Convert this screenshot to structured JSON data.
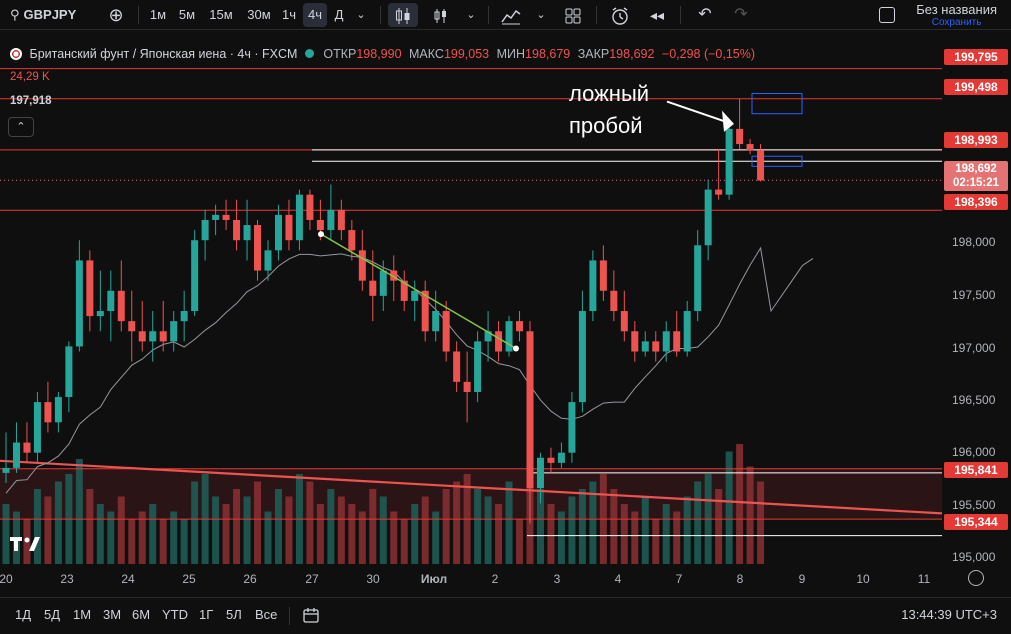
{
  "toolbar": {
    "symbol": "GBPJPY",
    "intervals": [
      "1м",
      "5м",
      "15м",
      "30м",
      "1ч",
      "4ч",
      "Д"
    ],
    "active_interval": "4ч",
    "layout_name": "Без названия",
    "layout_save": "Сохранить"
  },
  "legend": {
    "title": "Британский фунт / Японская иена · 4ч · FXCM",
    "open_label": "ОТКР",
    "open": "198,990",
    "high_label": "МАКС",
    "high": "199,053",
    "low_label": "МИН",
    "low": "198,679",
    "close_label": "ЗАКР",
    "close": "198,692",
    "change": "−0,298 (−0,15%)",
    "volume": "24,29 K",
    "ma_value": "197,918"
  },
  "annotation": {
    "line1": "ложный",
    "line2": "пробой"
  },
  "price_scale": {
    "labels": [
      "198,000",
      "197,500",
      "197,000",
      "196,500",
      "196,000",
      "195,500",
      "195,000"
    ],
    "levels": [
      "199,795",
      "199,498",
      "198,993",
      "198,396",
      "195,841",
      "195,344"
    ],
    "current_price": "198,692",
    "countdown": "02:15:21"
  },
  "time_scale": {
    "labels": [
      "20",
      "23",
      "24",
      "25",
      "26",
      "27",
      "30",
      "Июл",
      "2",
      "3",
      "4",
      "7",
      "8",
      "9",
      "10",
      "11"
    ]
  },
  "bottom": {
    "ranges": [
      "1Д",
      "5Д",
      "1М",
      "3М",
      "6М",
      "YTD",
      "1Г",
      "5Л",
      "Все"
    ],
    "clock": "13:44:39 UTC+3"
  },
  "colors": {
    "up": "#26a69a",
    "down": "#ef5350",
    "level": "#e53935",
    "bg": "#0f0f0f"
  },
  "chart_data": {
    "type": "candlestick",
    "ylim": [
      194.9,
      199.95
    ],
    "candles": [
      {
        "o": 195.8,
        "h": 196.2,
        "l": 195.7,
        "c": 195.85
      },
      {
        "o": 195.85,
        "h": 196.3,
        "l": 195.8,
        "c": 196.1
      },
      {
        "o": 196.1,
        "h": 196.3,
        "l": 195.9,
        "c": 196.0
      },
      {
        "o": 196.0,
        "h": 196.6,
        "l": 195.9,
        "c": 196.5
      },
      {
        "o": 196.5,
        "h": 196.7,
        "l": 196.2,
        "c": 196.3
      },
      {
        "o": 196.3,
        "h": 196.6,
        "l": 196.2,
        "c": 196.55
      },
      {
        "o": 196.55,
        "h": 197.1,
        "l": 196.4,
        "c": 197.05
      },
      {
        "o": 197.05,
        "h": 198.1,
        "l": 197.0,
        "c": 197.9
      },
      {
        "o": 197.9,
        "h": 198.0,
        "l": 197.2,
        "c": 197.35
      },
      {
        "o": 197.35,
        "h": 197.8,
        "l": 197.2,
        "c": 197.4
      },
      {
        "o": 197.4,
        "h": 197.8,
        "l": 197.1,
        "c": 197.6
      },
      {
        "o": 197.6,
        "h": 197.9,
        "l": 197.2,
        "c": 197.3
      },
      {
        "o": 197.3,
        "h": 197.6,
        "l": 196.9,
        "c": 197.2
      },
      {
        "o": 197.2,
        "h": 197.5,
        "l": 197.0,
        "c": 197.1
      },
      {
        "o": 197.1,
        "h": 197.4,
        "l": 196.9,
        "c": 197.2
      },
      {
        "o": 197.2,
        "h": 197.5,
        "l": 197.0,
        "c": 197.1
      },
      {
        "o": 197.1,
        "h": 197.4,
        "l": 197.0,
        "c": 197.3
      },
      {
        "o": 197.3,
        "h": 197.6,
        "l": 197.1,
        "c": 197.4
      },
      {
        "o": 197.4,
        "h": 198.2,
        "l": 197.35,
        "c": 198.1
      },
      {
        "o": 198.1,
        "h": 198.4,
        "l": 197.9,
        "c": 198.3
      },
      {
        "o": 198.3,
        "h": 198.45,
        "l": 198.15,
        "c": 198.35
      },
      {
        "o": 198.35,
        "h": 198.5,
        "l": 198.2,
        "c": 198.3
      },
      {
        "o": 198.3,
        "h": 198.5,
        "l": 198.0,
        "c": 198.1
      },
      {
        "o": 198.1,
        "h": 198.5,
        "l": 197.9,
        "c": 198.25
      },
      {
        "o": 198.25,
        "h": 198.3,
        "l": 197.7,
        "c": 197.8
      },
      {
        "o": 197.8,
        "h": 198.1,
        "l": 197.7,
        "c": 198.0
      },
      {
        "o": 198.0,
        "h": 198.45,
        "l": 197.9,
        "c": 198.35
      },
      {
        "o": 198.35,
        "h": 198.5,
        "l": 198.0,
        "c": 198.1
      },
      {
        "o": 198.1,
        "h": 198.6,
        "l": 198.0,
        "c": 198.55
      },
      {
        "o": 198.55,
        "h": 198.6,
        "l": 198.2,
        "c": 198.3
      },
      {
        "o": 198.3,
        "h": 198.5,
        "l": 198.1,
        "c": 198.2
      },
      {
        "o": 198.2,
        "h": 198.65,
        "l": 198.1,
        "c": 198.4
      },
      {
        "o": 198.4,
        "h": 198.5,
        "l": 198.1,
        "c": 198.2
      },
      {
        "o": 198.2,
        "h": 198.3,
        "l": 197.9,
        "c": 198.0
      },
      {
        "o": 198.0,
        "h": 198.2,
        "l": 197.6,
        "c": 197.7
      },
      {
        "o": 197.7,
        "h": 198.0,
        "l": 197.3,
        "c": 197.55
      },
      {
        "o": 197.55,
        "h": 197.9,
        "l": 197.4,
        "c": 197.8
      },
      {
        "o": 197.8,
        "h": 197.95,
        "l": 197.5,
        "c": 197.7
      },
      {
        "o": 197.7,
        "h": 197.8,
        "l": 197.4,
        "c": 197.5
      },
      {
        "o": 197.5,
        "h": 197.7,
        "l": 197.3,
        "c": 197.6
      },
      {
        "o": 197.6,
        "h": 197.7,
        "l": 197.1,
        "c": 197.2
      },
      {
        "o": 197.2,
        "h": 197.6,
        "l": 197.1,
        "c": 197.4
      },
      {
        "o": 197.4,
        "h": 197.5,
        "l": 196.9,
        "c": 197.0
      },
      {
        "o": 197.0,
        "h": 197.1,
        "l": 196.6,
        "c": 196.7
      },
      {
        "o": 196.7,
        "h": 197.0,
        "l": 196.3,
        "c": 196.6
      },
      {
        "o": 196.6,
        "h": 197.2,
        "l": 196.5,
        "c": 197.1
      },
      {
        "o": 197.1,
        "h": 197.4,
        "l": 196.9,
        "c": 197.2
      },
      {
        "o": 197.2,
        "h": 197.3,
        "l": 196.9,
        "c": 197.0
      },
      {
        "o": 197.0,
        "h": 197.35,
        "l": 196.95,
        "c": 197.3
      },
      {
        "o": 197.3,
        "h": 197.4,
        "l": 197.1,
        "c": 197.2
      },
      {
        "o": 197.2,
        "h": 197.3,
        "l": 195.3,
        "c": 195.65
      },
      {
        "o": 195.65,
        "h": 196.0,
        "l": 195.5,
        "c": 195.95
      },
      {
        "o": 195.95,
        "h": 196.05,
        "l": 195.8,
        "c": 195.9
      },
      {
        "o": 195.9,
        "h": 196.1,
        "l": 195.85,
        "c": 196.0
      },
      {
        "o": 196.0,
        "h": 196.6,
        "l": 195.9,
        "c": 196.5
      },
      {
        "o": 196.5,
        "h": 197.6,
        "l": 196.4,
        "c": 197.4
      },
      {
        "o": 197.4,
        "h": 198.0,
        "l": 197.3,
        "c": 197.9
      },
      {
        "o": 197.9,
        "h": 198.05,
        "l": 197.5,
        "c": 197.6
      },
      {
        "o": 197.6,
        "h": 197.8,
        "l": 197.3,
        "c": 197.4
      },
      {
        "o": 197.4,
        "h": 197.6,
        "l": 197.1,
        "c": 197.2
      },
      {
        "o": 197.2,
        "h": 197.3,
        "l": 196.9,
        "c": 197.0
      },
      {
        "o": 197.0,
        "h": 197.2,
        "l": 196.95,
        "c": 197.1
      },
      {
        "o": 197.1,
        "h": 197.2,
        "l": 196.9,
        "c": 197.0
      },
      {
        "o": 197.0,
        "h": 197.3,
        "l": 196.9,
        "c": 197.2
      },
      {
        "o": 197.2,
        "h": 197.4,
        "l": 196.95,
        "c": 197.0
      },
      {
        "o": 197.0,
        "h": 197.5,
        "l": 196.95,
        "c": 197.4
      },
      {
        "o": 197.4,
        "h": 198.2,
        "l": 197.3,
        "c": 198.05
      },
      {
        "o": 198.05,
        "h": 198.7,
        "l": 197.9,
        "c": 198.6
      },
      {
        "o": 198.6,
        "h": 199.0,
        "l": 198.5,
        "c": 198.55
      },
      {
        "o": 198.55,
        "h": 199.3,
        "l": 198.5,
        "c": 199.2
      },
      {
        "o": 199.2,
        "h": 199.5,
        "l": 199.0,
        "c": 199.05
      },
      {
        "o": 199.05,
        "h": 199.1,
        "l": 198.95,
        "c": 198.99
      },
      {
        "o": 198.99,
        "h": 199.05,
        "l": 198.68,
        "c": 198.69
      }
    ],
    "volumes": [
      0.4,
      0.35,
      0.3,
      0.5,
      0.45,
      0.55,
      0.6,
      0.7,
      0.5,
      0.4,
      0.35,
      0.45,
      0.3,
      0.35,
      0.4,
      0.3,
      0.35,
      0.3,
      0.55,
      0.6,
      0.45,
      0.4,
      0.5,
      0.45,
      0.55,
      0.35,
      0.5,
      0.45,
      0.6,
      0.55,
      0.4,
      0.5,
      0.45,
      0.4,
      0.35,
      0.5,
      0.45,
      0.35,
      0.3,
      0.4,
      0.45,
      0.35,
      0.5,
      0.55,
      0.6,
      0.5,
      0.45,
      0.4,
      0.55,
      0.3,
      0.9,
      0.5,
      0.4,
      0.35,
      0.45,
      0.5,
      0.55,
      0.6,
      0.5,
      0.4,
      0.35,
      0.45,
      0.3,
      0.4,
      0.35,
      0.45,
      0.55,
      0.6,
      0.5,
      0.75,
      0.8,
      0.65,
      0.55
    ]
  }
}
